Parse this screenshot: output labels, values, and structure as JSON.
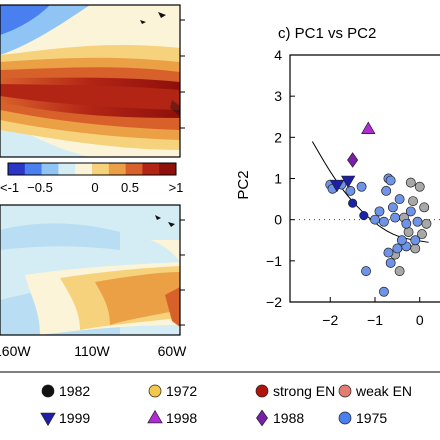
{
  "colorbar": {
    "ticks": [
      "<-1",
      "−0.5",
      "0",
      "0.5",
      ">1"
    ],
    "colors": [
      "#2b35c8",
      "#4a7ff0",
      "#8fc4f5",
      "#d4ecf3",
      "#fbf4d8",
      "#f6d27c",
      "#eba045",
      "#d8612b",
      "#b22515",
      "#8f0f0b"
    ]
  },
  "map_bottom": {
    "xticks": [
      "160W",
      "110W",
      "60W"
    ]
  },
  "chart_data": {
    "type": "scatter",
    "title": "c) PC1 vs PC2",
    "xlabel": "",
    "ylabel": "PC2",
    "xlim": [
      -2.9,
      0.9
    ],
    "ylim": [
      -2,
      4
    ],
    "xticks": [
      "−2",
      "−1",
      "0"
    ],
    "yticks": [
      "4",
      "3",
      "2",
      "1",
      "0",
      "−1",
      "−2"
    ],
    "reference_line_y": 0,
    "fit_curve": [
      [
        -2.4,
        1.9
      ],
      [
        -2.0,
        1.15
      ],
      [
        -1.6,
        0.55
      ],
      [
        -1.2,
        0.1
      ],
      [
        -0.8,
        -0.25
      ],
      [
        -0.4,
        -0.45
      ],
      [
        0.2,
        -0.55
      ]
    ],
    "series": [
      {
        "name": "1998",
        "marker": "triangle-up",
        "color": "#b02ad6",
        "points": [
          [
            -1.15,
            2.2
          ]
        ]
      },
      {
        "name": "1988",
        "marker": "diamond",
        "color": "#7a1fa8",
        "points": [
          [
            -1.5,
            1.45
          ]
        ]
      },
      {
        "name": "1999",
        "marker": "triangle-down",
        "color": "#1d1fa8",
        "points": [
          [
            -1.6,
            0.95
          ],
          [
            -1.85,
            0.85
          ]
        ]
      },
      {
        "name": "strong EN",
        "marker": "circle",
        "color": "#1a24a8",
        "points": [
          [
            -1.5,
            0.4
          ],
          [
            -1.25,
            0.1
          ]
        ]
      },
      {
        "name": "1975",
        "marker": "circle",
        "color": "#6f93e6",
        "points": [
          [
            -2.0,
            0.85
          ],
          [
            -1.95,
            0.75
          ],
          [
            -1.75,
            0.85
          ],
          [
            -1.55,
            0.7
          ],
          [
            -1.3,
            0.8
          ],
          [
            -0.7,
            1.0
          ],
          [
            -0.75,
            0.7
          ],
          [
            -0.65,
            0.95
          ],
          [
            -0.9,
            0.2
          ],
          [
            -1.0,
            0.0
          ],
          [
            -0.6,
            0.3
          ],
          [
            -0.55,
            0.05
          ],
          [
            -0.8,
            -0.05
          ],
          [
            -0.3,
            -0.1
          ],
          [
            -0.2,
            0.2
          ],
          [
            -0.45,
            0.5
          ],
          [
            -0.5,
            -0.7
          ],
          [
            -0.3,
            -0.65
          ],
          [
            -1.2,
            -1.25
          ],
          [
            -0.7,
            -0.8
          ],
          [
            -0.65,
            -1.05
          ],
          [
            -0.8,
            -1.75
          ],
          [
            -0.4,
            -0.5
          ],
          [
            -0.1,
            -0.5
          ],
          [
            -0.05,
            -0.05
          ]
        ]
      },
      {
        "name": "weak EN",
        "marker": "circle",
        "color": "#a8a8a8",
        "points": [
          [
            -0.2,
            0.9
          ],
          [
            0.0,
            0.8
          ],
          [
            -0.15,
            0.45
          ],
          [
            0.1,
            0.3
          ],
          [
            -0.35,
            0.05
          ],
          [
            -0.25,
            -0.3
          ],
          [
            -0.1,
            -0.7
          ],
          [
            -0.45,
            -1.25
          ],
          [
            -0.55,
            -0.85
          ],
          [
            0.05,
            -0.35
          ],
          [
            0.15,
            -0.1
          ]
        ]
      }
    ]
  },
  "legend": {
    "row1": [
      {
        "label": "1982",
        "marker": "circle",
        "color": "#111111"
      },
      {
        "label": "1972",
        "marker": "circle",
        "color": "#f3c84a"
      },
      {
        "label": "strong EN",
        "marker": "circle",
        "color": "#b1140c"
      },
      {
        "label": "weak EN",
        "marker": "circle",
        "color": "#e37d74"
      }
    ],
    "row2": [
      {
        "label": "1999",
        "marker": "triangle-down",
        "color": "#1d1fa8"
      },
      {
        "label": "1998",
        "marker": "triangle-up",
        "color": "#b02ad6"
      },
      {
        "label": "1988",
        "marker": "diamond",
        "color": "#7a1fa8"
      },
      {
        "label": "1975",
        "marker": "circle",
        "color": "#4a7ff0"
      }
    ]
  }
}
